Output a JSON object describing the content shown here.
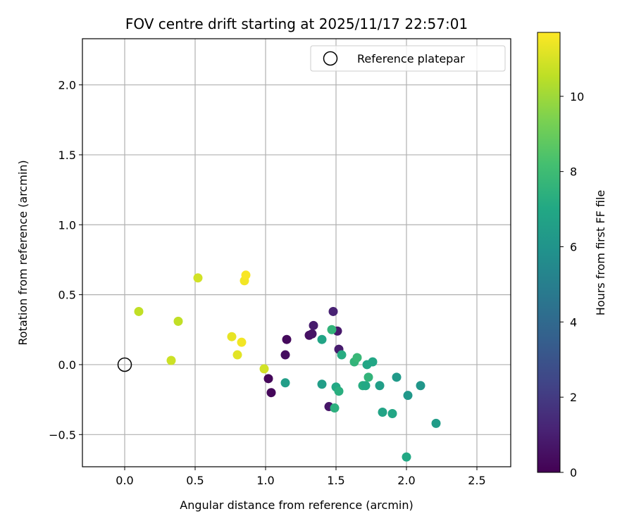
{
  "chart_data": {
    "type": "scatter",
    "title": "FOV centre drift starting at 2025/11/17 22:57:01",
    "xlabel": "Angular distance from reference (arcmin)",
    "ylabel": "Rotation from reference (arcmin)",
    "xlim": [
      -0.3,
      2.74
    ],
    "ylim": [
      -0.73,
      2.33
    ],
    "xticks": [
      0.0,
      0.5,
      1.0,
      1.5,
      2.0,
      2.5
    ],
    "yticks": [
      -0.5,
      0.0,
      0.5,
      1.0,
      1.5,
      2.0
    ],
    "xtick_labels": [
      "0.0",
      "0.5",
      "1.0",
      "1.5",
      "2.0",
      "2.5"
    ],
    "ytick_labels": [
      "−0.5",
      "0.0",
      "0.5",
      "1.0",
      "1.5",
      "2.0"
    ],
    "grid": true,
    "legend": {
      "placement": "top-right",
      "entries": [
        "Reference platepar"
      ]
    },
    "reference_point": {
      "x": 0.0,
      "y": 0.0,
      "label": "Reference platepar"
    },
    "colorbar": {
      "label": "Hours from first FF file",
      "colormap": "viridis",
      "range": [
        0,
        11.7
      ],
      "ticks": [
        0,
        2,
        4,
        6,
        8,
        10
      ],
      "tick_labels": [
        "0",
        "2",
        "4",
        "6",
        "8",
        "10"
      ]
    },
    "points": [
      {
        "x": 1.02,
        "y": -0.1,
        "c": 0.2
      },
      {
        "x": 1.04,
        "y": -0.2,
        "c": 0.2
      },
      {
        "x": 1.14,
        "y": 0.07,
        "c": 0.4
      },
      {
        "x": 1.15,
        "y": 0.18,
        "c": 0.3
      },
      {
        "x": 1.31,
        "y": 0.21,
        "c": 0.5
      },
      {
        "x": 1.33,
        "y": 0.22,
        "c": 0.6
      },
      {
        "x": 1.34,
        "y": 0.28,
        "c": 0.9
      },
      {
        "x": 1.48,
        "y": 0.38,
        "c": 1.1
      },
      {
        "x": 1.51,
        "y": 0.24,
        "c": 0.8
      },
      {
        "x": 1.52,
        "y": 0.11,
        "c": 0.9
      },
      {
        "x": 1.45,
        "y": -0.3,
        "c": 0.7
      },
      {
        "x": 1.14,
        "y": -0.13,
        "c": 6.5
      },
      {
        "x": 1.4,
        "y": -0.14,
        "c": 6.5
      },
      {
        "x": 1.4,
        "y": 0.18,
        "c": 6.8
      },
      {
        "x": 1.47,
        "y": 0.25,
        "c": 7.6
      },
      {
        "x": 1.5,
        "y": -0.16,
        "c": 7.0
      },
      {
        "x": 1.52,
        "y": -0.19,
        "c": 7.3
      },
      {
        "x": 1.49,
        "y": -0.31,
        "c": 7.4
      },
      {
        "x": 1.54,
        "y": 0.07,
        "c": 7.2
      },
      {
        "x": 1.63,
        "y": 0.02,
        "c": 7.6
      },
      {
        "x": 1.65,
        "y": 0.05,
        "c": 7.8
      },
      {
        "x": 1.69,
        "y": -0.15,
        "c": 7.2
      },
      {
        "x": 1.71,
        "y": -0.15,
        "c": 7.0
      },
      {
        "x": 1.72,
        "y": 0.0,
        "c": 6.9
      },
      {
        "x": 1.73,
        "y": -0.09,
        "c": 7.6
      },
      {
        "x": 1.76,
        "y": 0.02,
        "c": 6.9
      },
      {
        "x": 1.81,
        "y": -0.15,
        "c": 6.5
      },
      {
        "x": 1.83,
        "y": -0.34,
        "c": 6.8
      },
      {
        "x": 1.9,
        "y": -0.35,
        "c": 6.9
      },
      {
        "x": 1.93,
        "y": -0.09,
        "c": 6.3
      },
      {
        "x": 2.01,
        "y": -0.22,
        "c": 6.2
      },
      {
        "x": 2.0,
        "y": -0.66,
        "c": 7.0
      },
      {
        "x": 2.1,
        "y": -0.15,
        "c": 6.1
      },
      {
        "x": 2.21,
        "y": -0.42,
        "c": 6.4
      },
      {
        "x": 0.1,
        "y": 0.38,
        "c": 10.6
      },
      {
        "x": 0.33,
        "y": 0.03,
        "c": 10.8
      },
      {
        "x": 0.38,
        "y": 0.31,
        "c": 10.6
      },
      {
        "x": 0.52,
        "y": 0.62,
        "c": 10.9
      },
      {
        "x": 0.76,
        "y": 0.2,
        "c": 11.3
      },
      {
        "x": 0.8,
        "y": 0.07,
        "c": 11.2
      },
      {
        "x": 0.83,
        "y": 0.16,
        "c": 11.5
      },
      {
        "x": 0.85,
        "y": 0.6,
        "c": 11.5
      },
      {
        "x": 0.86,
        "y": 0.64,
        "c": 11.6
      },
      {
        "x": 0.99,
        "y": -0.03,
        "c": 10.9
      }
    ]
  }
}
